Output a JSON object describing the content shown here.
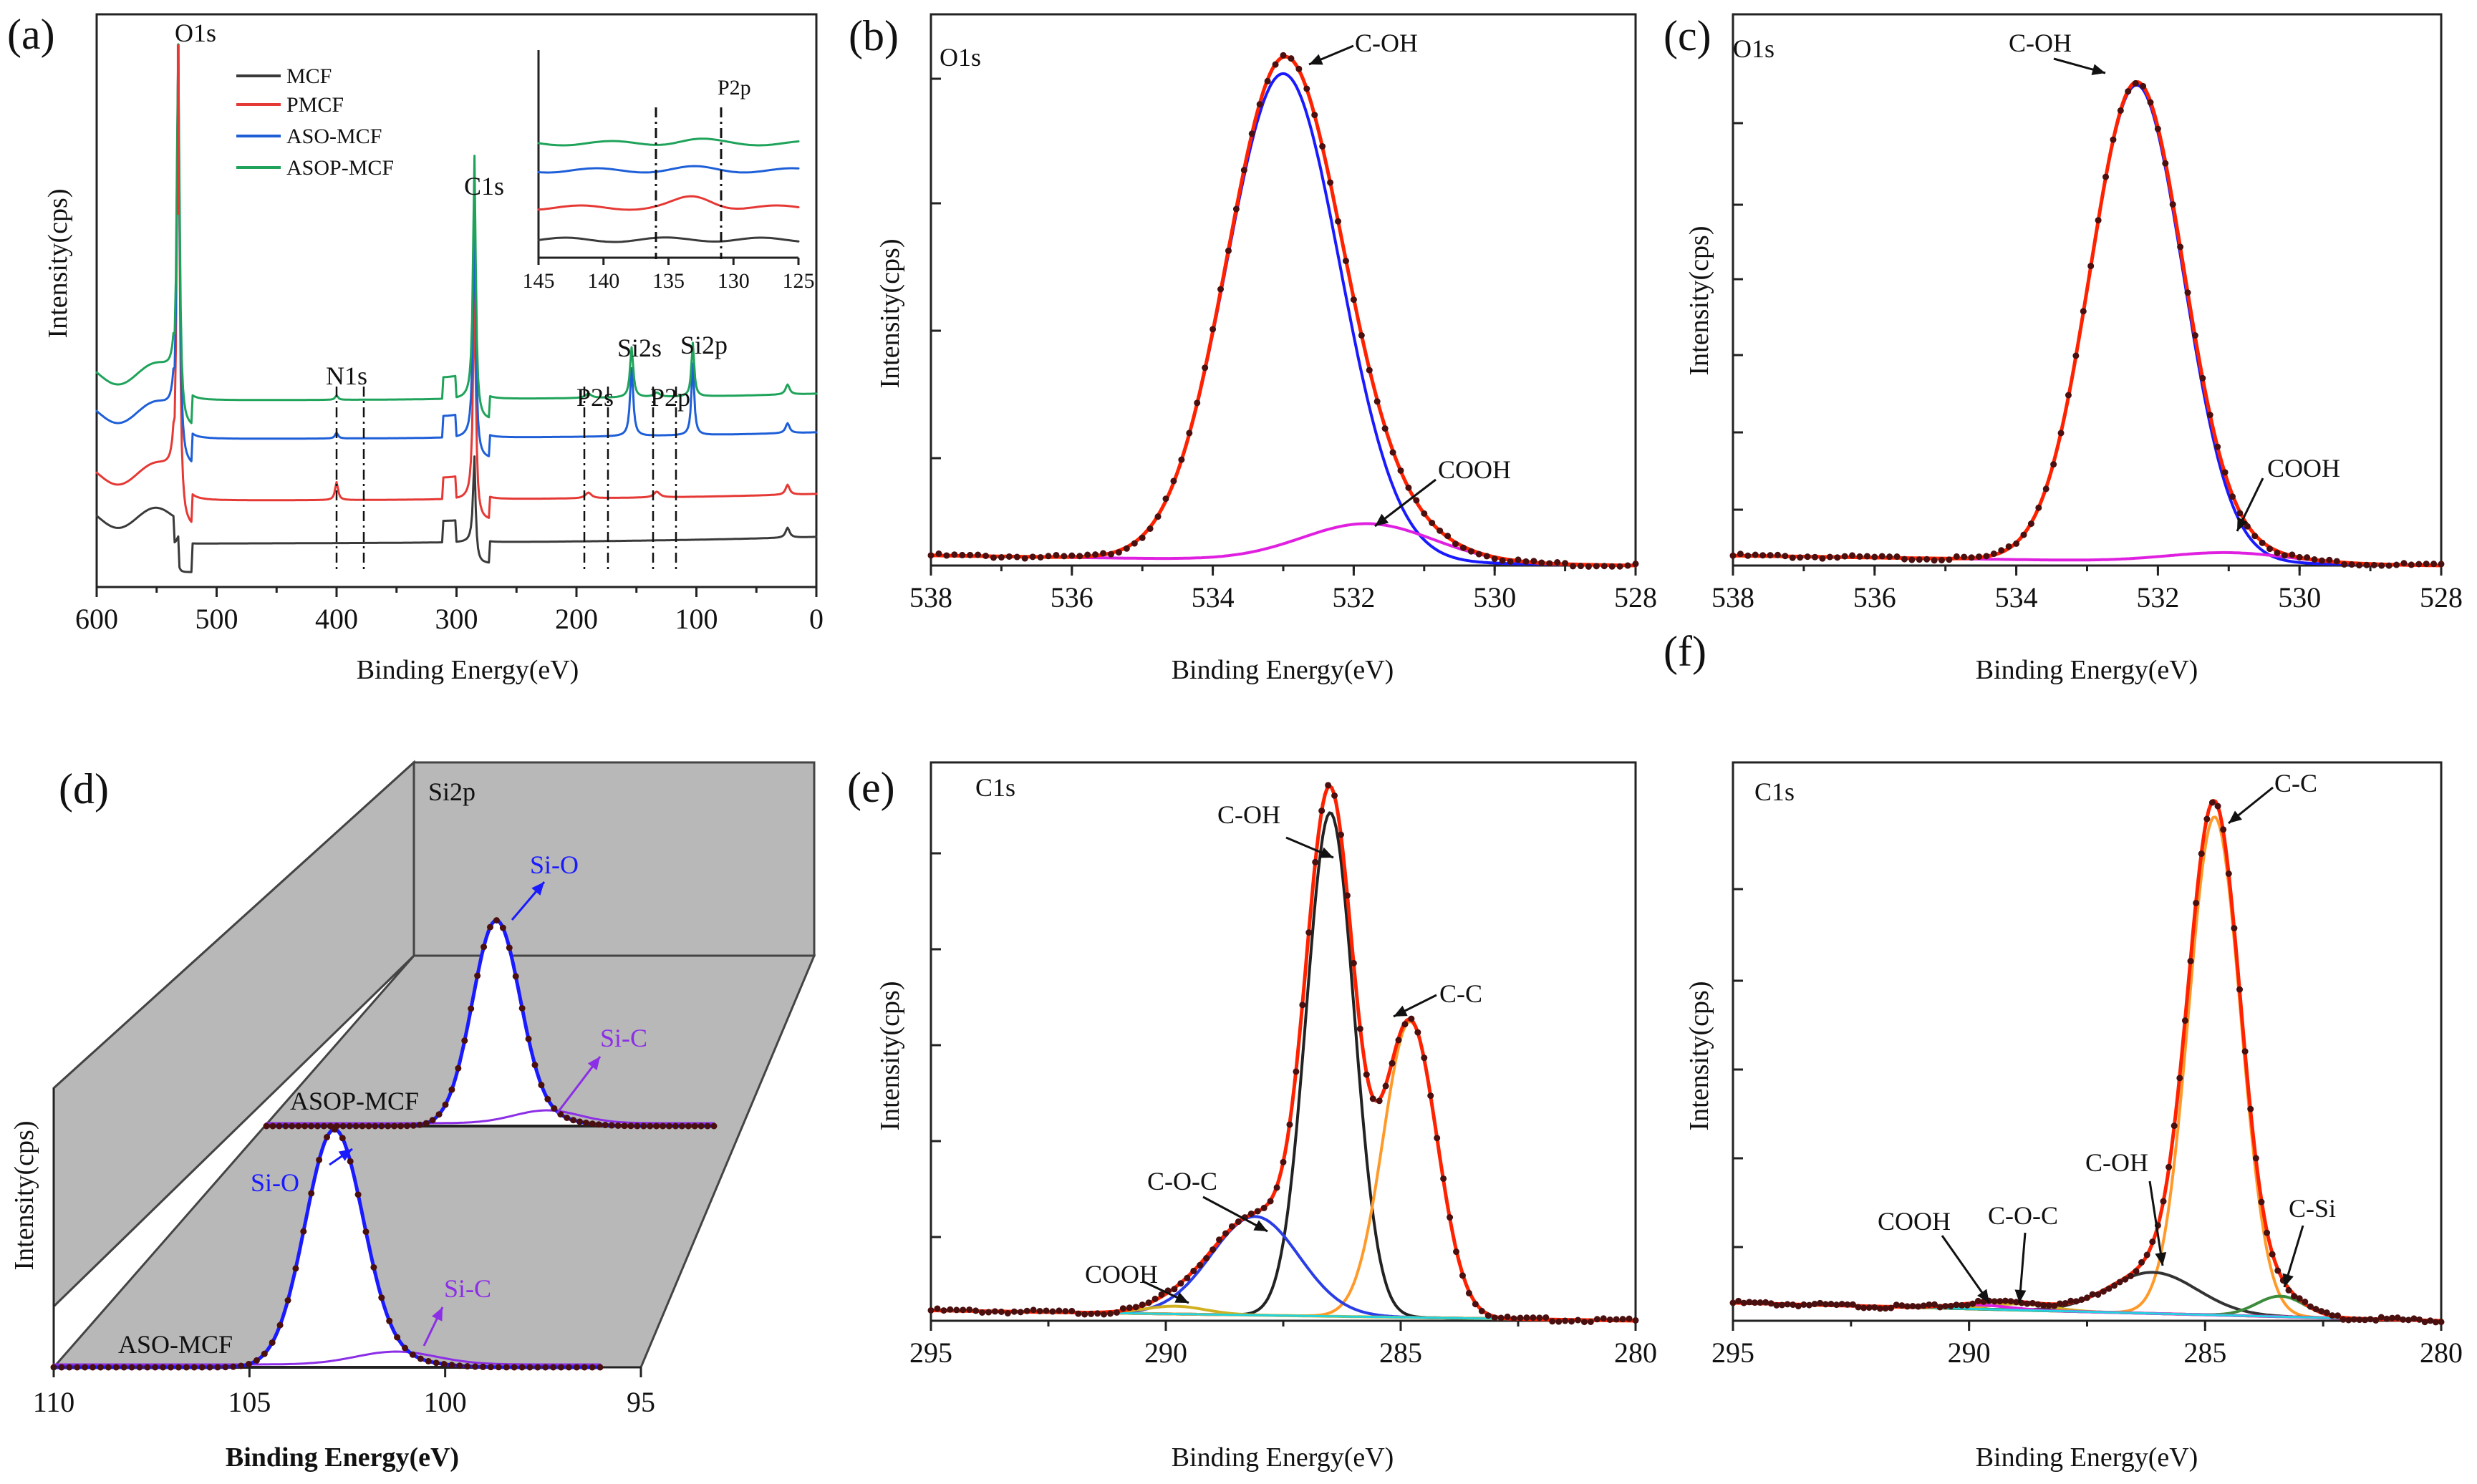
{
  "figure": {
    "xlabel": "Binding Energy(eV)",
    "ylabel": "Intensity(cps)",
    "labels": [
      "(a)",
      "(b)",
      "(c)",
      "(d)",
      "(e)",
      "(f)"
    ]
  },
  "colors": {
    "black": "#3a3a3a",
    "red": "#e53935",
    "blue": "#1e5fd8",
    "green": "#1fa35a",
    "fit_red": "#ff2200",
    "fit_blue": "#1a1aff",
    "magenta": "#e020e0",
    "orange": "#ff9a2a",
    "cyan": "#22d3e0",
    "olive": "#3c8c3c",
    "violet": "#8c2ee6",
    "dots": "#4a0f0f",
    "gray": "#b8b8b8"
  },
  "chart_data": [
    {
      "id": "a",
      "type": "line",
      "label": "(a)",
      "xlabel": "Binding Energy(eV)",
      "ylabel": "Intensity(cps)",
      "xlim": [
        600,
        0
      ],
      "xticks": [
        600,
        500,
        400,
        300,
        200,
        100,
        0
      ],
      "legend": [
        "MCF",
        "PMCF",
        "ASO-MCF",
        "ASOP-MCF"
      ],
      "annotations": [
        "O1s",
        "C1s",
        "N1s",
        "P2s",
        "P2p",
        "Si2s",
        "Si2p"
      ],
      "series_note": "Survey spectra stacked: MCF (bottom), PMCF, ASO-MCF, ASOP-MCF (top); O1s at 532, C1s at 285, Si2s at 154, Si2p at 103, N1s at ~400, P2s at ~190, P2p at ~133",
      "inset": {
        "label": "P2p",
        "xlim": [
          145,
          125
        ],
        "xticks": [
          145,
          140,
          135,
          130,
          125
        ]
      }
    },
    {
      "id": "b",
      "type": "line",
      "label": "(b)",
      "title": "O1s",
      "xlabel": "Binding Energy(eV)",
      "ylabel": "Intensity(cps)",
      "xlim": [
        538,
        528
      ],
      "xticks": [
        538,
        536,
        534,
        532,
        530,
        528
      ],
      "peaks": [
        {
          "name": "C-OH",
          "center": 533.0,
          "height": 0.96,
          "fwhm": 1.9
        },
        {
          "name": "COOH",
          "center": 531.8,
          "height": 0.075,
          "fwhm": 2.2
        }
      ],
      "baseline": [
        0.02,
        0.0
      ]
    },
    {
      "id": "c",
      "type": "line",
      "label": "(c)",
      "title": "O1s",
      "xlabel": "Binding Energy(eV)",
      "ylabel": "Intensity(cps)",
      "xlim": [
        538,
        528
      ],
      "xticks": [
        538,
        536,
        534,
        532,
        530,
        528
      ],
      "peaks": [
        {
          "name": "C-OH",
          "center": 532.3,
          "height": 0.96,
          "fwhm": 1.55
        },
        {
          "name": "COOH",
          "center": 531.0,
          "height": 0.02,
          "fwhm": 2.0
        }
      ],
      "baseline": [
        0.02,
        0.0
      ]
    },
    {
      "id": "d",
      "type": "line",
      "label": "(d)",
      "title": "Si2p",
      "xlabel": "Binding Energy(eV)",
      "ylabel": "Intensity(cps)",
      "xlim": [
        110,
        95
      ],
      "xticks": [
        110,
        105,
        100,
        95
      ],
      "series": [
        {
          "name": "ASO-MCF",
          "peaks": [
            {
              "name": "Si-O",
              "center": 102.3,
              "height": 0.95,
              "fwhm": 1.9
            },
            {
              "name": "Si-C",
              "center": 100.6,
              "height": 0.04,
              "fwhm": 2.0
            }
          ]
        },
        {
          "name": "ASOP-MCF",
          "peaks": [
            {
              "name": "Si-O",
              "center": 102.3,
              "height": 0.95,
              "fwhm": 1.9
            },
            {
              "name": "Si-C",
              "center": 100.6,
              "height": 0.04,
              "fwhm": 2.0
            }
          ]
        }
      ]
    },
    {
      "id": "e",
      "type": "line",
      "label": "(e)",
      "title": "C1s",
      "xlabel": "Binding Energy(eV)",
      "ylabel": "Intensity(cps)",
      "xlim": [
        295,
        280
      ],
      "xticks": [
        295,
        290,
        285,
        280
      ],
      "peaks": [
        {
          "name": "C-OH",
          "center": 286.5,
          "height": 0.97,
          "fwhm": 1.2
        },
        {
          "name": "C-C",
          "center": 284.8,
          "height": 0.57,
          "fwhm": 1.35
        },
        {
          "name": "C-O-C",
          "center": 288.1,
          "height": 0.19,
          "fwhm": 2.2
        },
        {
          "name": "COOH",
          "center": 289.8,
          "height": 0.015,
          "fwhm": 1.5
        }
      ],
      "baseline": [
        0.02,
        0.0
      ]
    },
    {
      "id": "f",
      "type": "line",
      "label": "(f)",
      "title": "C1s",
      "xlabel": "Binding Energy(eV)",
      "ylabel": "Intensity(cps)",
      "xlim": [
        295,
        280
      ],
      "xticks": [
        295,
        290,
        285,
        280
      ],
      "peaks": [
        {
          "name": "C-C",
          "center": 284.8,
          "height": 0.97,
          "fwhm": 1.3
        },
        {
          "name": "C-OH",
          "center": 286.1,
          "height": 0.08,
          "fwhm": 2.2
        },
        {
          "name": "C-Si",
          "center": 283.4,
          "height": 0.04,
          "fwhm": 1.2
        },
        {
          "name": "C-O-C",
          "center": 288.9,
          "height": 0.012,
          "fwhm": 1.5
        },
        {
          "name": "COOH",
          "center": 289.8,
          "height": 0.008,
          "fwhm": 1.5
        }
      ],
      "baseline": [
        0.035,
        0.0
      ]
    }
  ]
}
